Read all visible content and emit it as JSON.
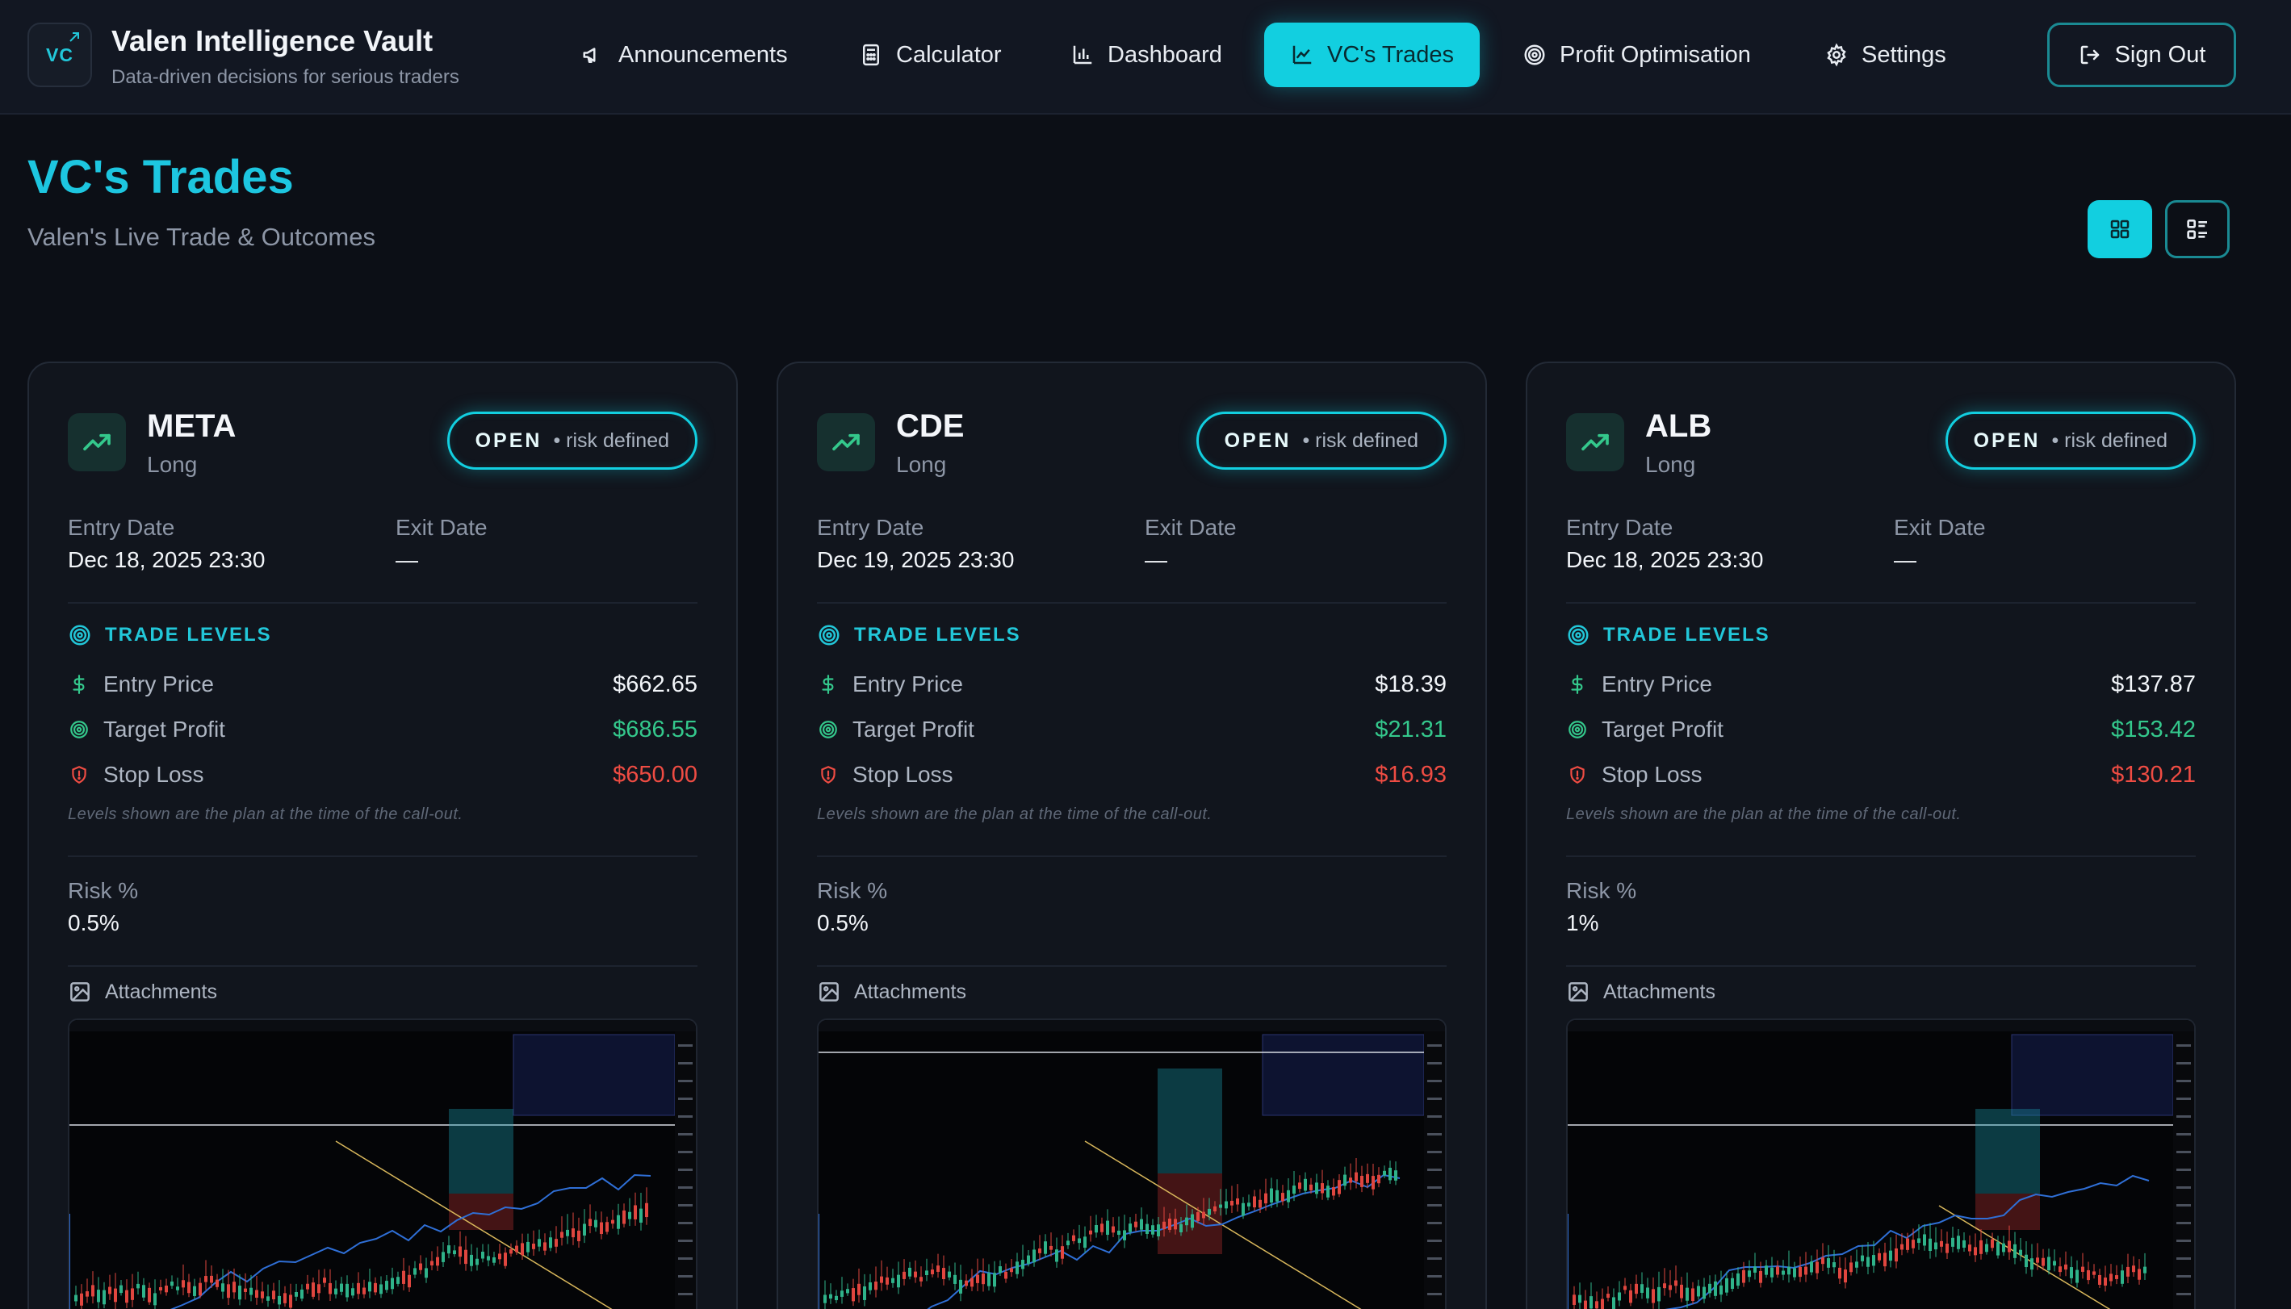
{
  "brand": {
    "logo_text": "VC",
    "title": "Valen Intelligence Vault",
    "subtitle": "Data-driven decisions for serious traders"
  },
  "nav": [
    {
      "label": "Announcements",
      "icon": "megaphone-icon"
    },
    {
      "label": "Calculator",
      "icon": "calculator-icon"
    },
    {
      "label": "Dashboard",
      "icon": "bar-chart-icon"
    },
    {
      "label": "VC's Trades",
      "icon": "line-chart-icon",
      "active": true
    },
    {
      "label": "Profit Optimisation",
      "icon": "target-icon"
    },
    {
      "label": "Settings",
      "icon": "gear-icon"
    }
  ],
  "sign_out_label": "Sign Out",
  "page": {
    "title": "VC's Trades",
    "subtitle": "Valen's Live Trade & Outcomes"
  },
  "view_toggle": {
    "selected": "grid"
  },
  "labels": {
    "entry_date": "Entry Date",
    "exit_date": "Exit Date",
    "trade_levels": "TRADE LEVELS",
    "entry_price": "Entry Price",
    "target_profit": "Target Profit",
    "stop_loss": "Stop Loss",
    "levels_note": "Levels shown are the plan at the time of the call-out.",
    "risk_pct": "Risk %",
    "attachments": "Attachments"
  },
  "trades": [
    {
      "ticker": "META",
      "direction": "Long",
      "status": "OPEN",
      "status_note": "• risk defined",
      "entry_date": "Dec 18, 2025 23:30",
      "exit_date": "—",
      "entry_price": "$662.65",
      "target_profit": "$686.55",
      "stop_loss": "$650.00",
      "risk": "0.5%"
    },
    {
      "ticker": "CDE",
      "direction": "Long",
      "status": "OPEN",
      "status_note": "• risk defined",
      "entry_date": "Dec 19, 2025 23:30",
      "exit_date": "—",
      "entry_price": "$18.39",
      "target_profit": "$21.31",
      "stop_loss": "$16.93",
      "risk": "0.5%"
    },
    {
      "ticker": "ALB",
      "direction": "Long",
      "status": "OPEN",
      "status_note": "• risk defined",
      "entry_date": "Dec 18, 2025 23:30",
      "exit_date": "—",
      "entry_price": "$137.87",
      "target_profit": "$153.42",
      "stop_loss": "$130.21",
      "risk": "1%"
    }
  ],
  "colors": {
    "accent": "#12cfe0",
    "background": "#0c0f16",
    "card": "#11151d",
    "profit": "#34c88c",
    "loss": "#ef4c43"
  }
}
